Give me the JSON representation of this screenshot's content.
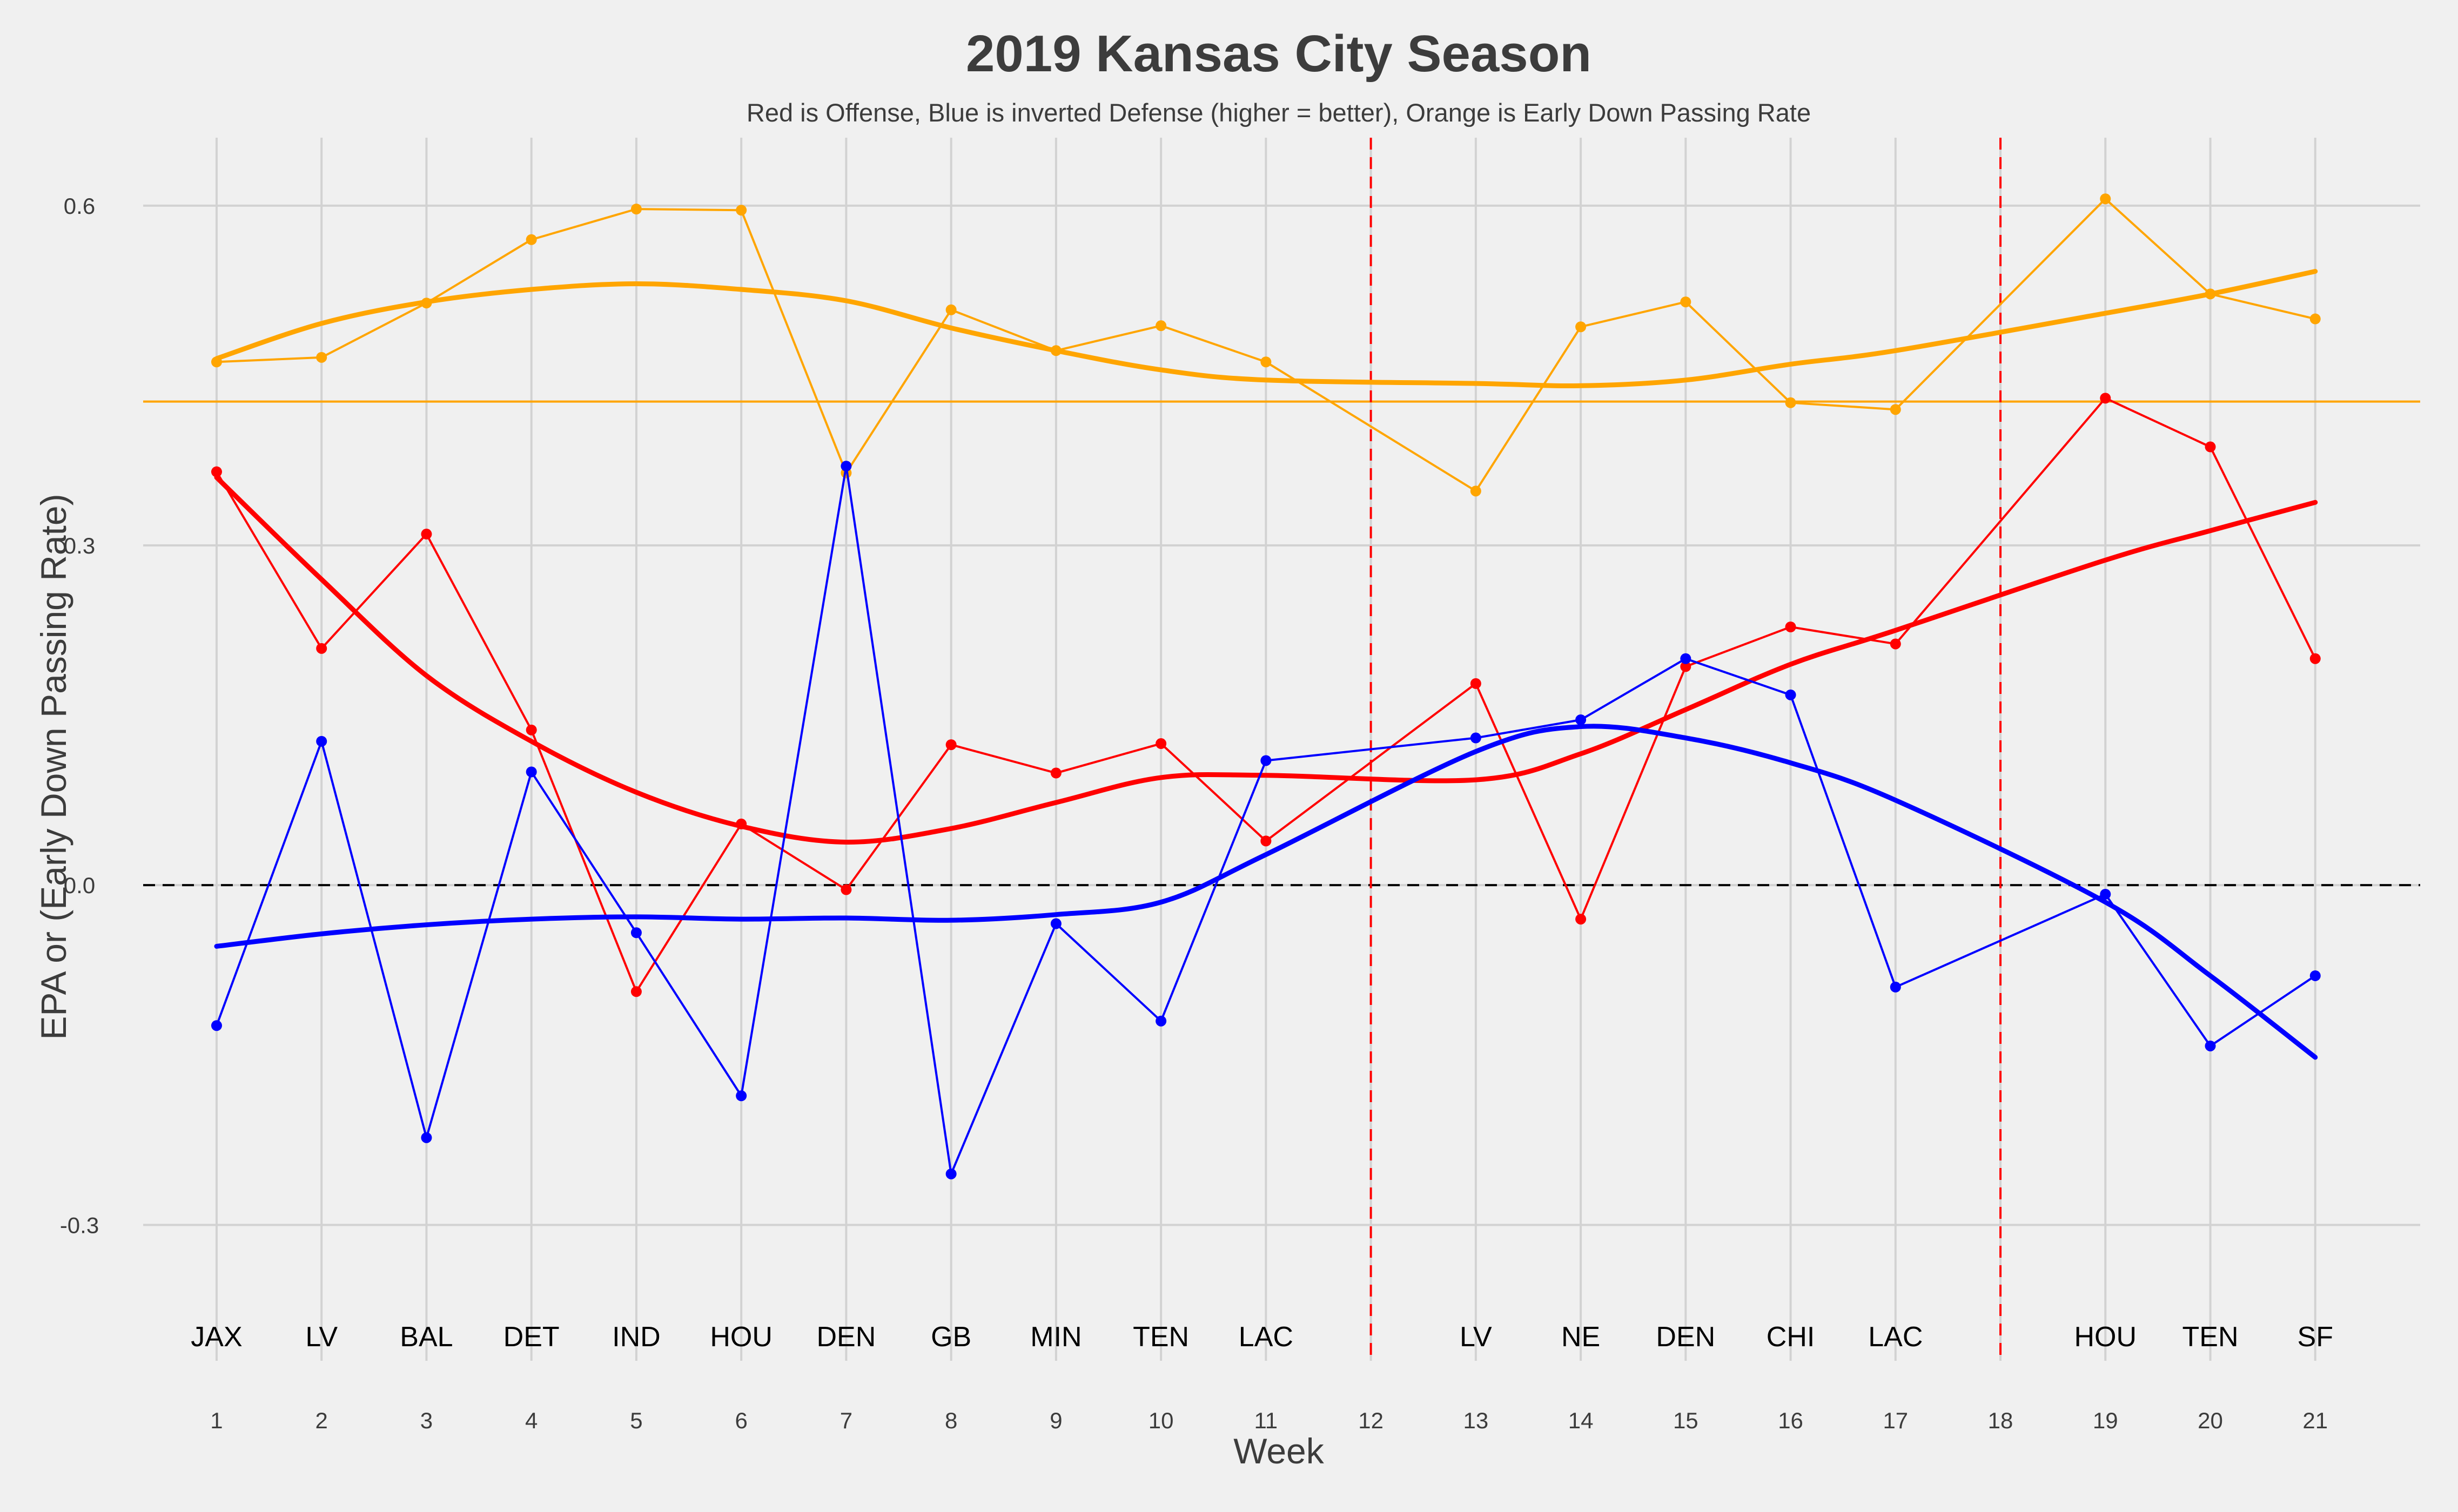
{
  "chart_data": {
    "type": "line",
    "title": "2019 Kansas City Season",
    "subtitle": "Red is Offense, Blue is inverted Defense (higher = better), Orange is Early Down Passing Rate",
    "xlabel": "Week",
    "ylabel": "EPA or (Early Down Passing Rate)",
    "xlim": [
      0.3,
      22.0
    ],
    "ylim": [
      -0.42,
      0.66
    ],
    "x_ticks": [
      1,
      2,
      3,
      4,
      5,
      6,
      7,
      8,
      9,
      10,
      11,
      12,
      13,
      14,
      15,
      16,
      17,
      18,
      19,
      20,
      21
    ],
    "x_tick_labels": [
      "1",
      "2",
      "3",
      "4",
      "5",
      "6",
      "7",
      "8",
      "9",
      "10",
      "11",
      "12",
      "13",
      "14",
      "15",
      "16",
      "17",
      "18",
      "19",
      "20",
      "21"
    ],
    "y_ticks": [
      -0.3,
      0.0,
      0.3,
      0.6
    ],
    "y_tick_labels": [
      "-0.3",
      "0.0",
      "0.3",
      "0.6"
    ],
    "grid": true,
    "opponents": [
      {
        "week": 1,
        "label": "JAX"
      },
      {
        "week": 2,
        "label": "LV"
      },
      {
        "week": 3,
        "label": "BAL"
      },
      {
        "week": 4,
        "label": "DET"
      },
      {
        "week": 5,
        "label": "IND"
      },
      {
        "week": 6,
        "label": "HOU"
      },
      {
        "week": 7,
        "label": "DEN"
      },
      {
        "week": 8,
        "label": "GB"
      },
      {
        "week": 9,
        "label": "MIN"
      },
      {
        "week": 10,
        "label": "TEN"
      },
      {
        "week": 11,
        "label": "LAC"
      },
      {
        "week": 13,
        "label": "LV"
      },
      {
        "week": 14,
        "label": "NE"
      },
      {
        "week": 15,
        "label": "DEN"
      },
      {
        "week": 16,
        "label": "CHI"
      },
      {
        "week": 17,
        "label": "LAC"
      },
      {
        "week": 19,
        "label": "HOU"
      },
      {
        "week": 20,
        "label": "TEN"
      },
      {
        "week": 21,
        "label": "SF"
      }
    ],
    "reference_lines": {
      "horizontal": [
        {
          "y": 0.0,
          "color": "#000000",
          "style": "dashed"
        },
        {
          "y": 0.427,
          "color": "#ffa500",
          "style": "solid"
        }
      ],
      "vertical": [
        {
          "x": 12,
          "color": "#ff0000",
          "style": "dashed"
        },
        {
          "x": 18,
          "color": "#ff0000",
          "style": "dashed"
        }
      ]
    },
    "series": [
      {
        "color": "#ffa500",
        "weeks": [
          1,
          2,
          3,
          4,
          5,
          6,
          7,
          8,
          9,
          10,
          11,
          13,
          14,
          15,
          16,
          17,
          19,
          20,
          21
        ],
        "values": [
          0.462,
          0.466,
          0.514,
          0.57,
          0.597,
          0.596,
          0.364,
          0.508,
          0.472,
          0.494,
          0.462,
          0.348,
          0.493,
          0.515,
          0.426,
          0.42,
          0.606,
          0.522,
          0.5
        ],
        "smooth": [
          0.465,
          0.496,
          0.515,
          0.526,
          0.531,
          0.526,
          0.516,
          0.492,
          0.472,
          0.455,
          0.446,
          0.443,
          0.441,
          0.446,
          0.46,
          0.472,
          0.505,
          0.522,
          0.542
        ]
      },
      {
        "color": "#ff0000",
        "weeks": [
          1,
          2,
          3,
          4,
          5,
          6,
          7,
          8,
          9,
          10,
          11,
          13,
          14,
          15,
          16,
          17,
          19,
          20,
          21
        ],
        "values": [
          0.365,
          0.209,
          0.31,
          0.137,
          -0.094,
          0.054,
          -0.004,
          0.124,
          0.099,
          0.125,
          0.039,
          0.178,
          -0.03,
          0.193,
          0.228,
          0.213,
          0.43,
          0.387,
          0.2
        ],
        "smooth": [
          0.36,
          0.27,
          0.185,
          0.127,
          0.082,
          0.052,
          0.038,
          0.05,
          0.073,
          0.095,
          0.097,
          0.093,
          0.116,
          0.155,
          0.195,
          0.225,
          0.287,
          0.313,
          0.338
        ]
      },
      {
        "color": "#0000ff",
        "weeks": [
          1,
          2,
          3,
          4,
          5,
          6,
          7,
          8,
          9,
          10,
          11,
          13,
          14,
          15,
          16,
          17,
          19,
          20,
          21
        ],
        "values": [
          -0.124,
          0.127,
          -0.223,
          0.1,
          -0.042,
          -0.186,
          0.37,
          -0.255,
          -0.034,
          -0.12,
          0.11,
          0.13,
          0.146,
          0.2,
          0.168,
          -0.09,
          -0.008,
          -0.142,
          -0.08
        ],
        "smooth": [
          -0.054,
          -0.043,
          -0.035,
          -0.03,
          -0.028,
          -0.03,
          -0.029,
          -0.031,
          -0.026,
          -0.015,
          0.027,
          0.118,
          0.14,
          0.13,
          0.108,
          0.075,
          -0.015,
          -0.08,
          -0.152
        ]
      }
    ]
  }
}
